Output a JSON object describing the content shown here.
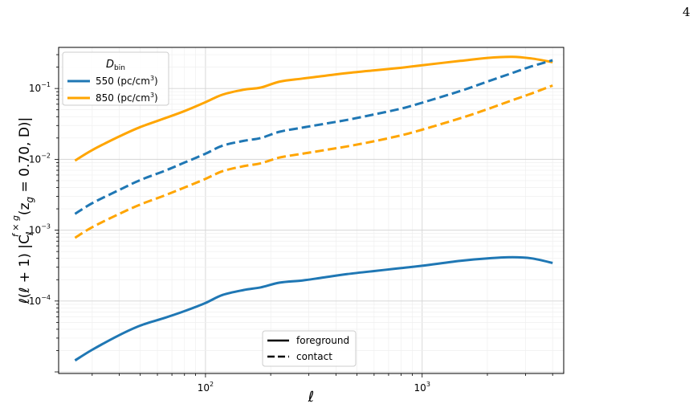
{
  "page": {
    "number": "4"
  },
  "chart_data": {
    "type": "line",
    "title": "",
    "xlabel": "ℓ",
    "ylabel": "ℓ(ℓ + 1) |C_ℓ^{f×g}(z_g = 0.70, D)|",
    "x_scale": "log",
    "y_scale": "log",
    "xlim": [
      21,
      4500
    ],
    "ylim": [
      9.5e-06,
      0.38
    ],
    "x_ticks": [
      {
        "value": 100,
        "base": "10",
        "exp": "2"
      },
      {
        "value": 1000,
        "base": "10",
        "exp": "3"
      }
    ],
    "y_ticks": [
      {
        "value": 0.1,
        "base": "10",
        "exp": "−1"
      },
      {
        "value": 0.01,
        "base": "10",
        "exp": "−2"
      },
      {
        "value": 0.001,
        "base": "10",
        "exp": "−3"
      },
      {
        "value": 0.0001,
        "base": "10",
        "exp": "−4"
      }
    ],
    "grid": true,
    "colors": {
      "D550": "#1f77b4",
      "D850": "#ffa500"
    },
    "legend_dbin": {
      "title_main": "D",
      "title_sub": "bin",
      "position": "top-left",
      "entries": [
        {
          "pre": "550 (pc/cm",
          "sup": "3",
          "post": ")",
          "color": "#1f77b4"
        },
        {
          "pre": "850 (pc/cm",
          "sup": "3",
          "post": ")",
          "color": "#ffa500"
        }
      ]
    },
    "legend_type": {
      "position": "lower-center",
      "entries": [
        {
          "label": "foreground",
          "style": "solid"
        },
        {
          "label": "contact",
          "style": "dashed"
        }
      ]
    },
    "series": [
      {
        "name": "850 (pc/cm3) foreground",
        "color": "#ffa500",
        "dash": "solid",
        "x": [
          25,
          30,
          40,
          50,
          65,
          80,
          100,
          120,
          150,
          180,
          220,
          280,
          350,
          450,
          600,
          800,
          1000,
          1500,
          2000,
          2600,
          3200,
          4000
        ],
        "y": [
          0.0096,
          0.0135,
          0.021,
          0.0285,
          0.038,
          0.048,
          0.064,
          0.082,
          0.096,
          0.103,
          0.125,
          0.138,
          0.15,
          0.165,
          0.18,
          0.196,
          0.213,
          0.245,
          0.27,
          0.28,
          0.265,
          0.235
        ]
      },
      {
        "name": "550 (pc/cm3) contact",
        "color": "#1f77b4",
        "dash": "dashed",
        "x": [
          25,
          30,
          40,
          50,
          65,
          80,
          100,
          120,
          150,
          180,
          220,
          280,
          350,
          450,
          600,
          800,
          1000,
          1500,
          2000,
          2600,
          3200,
          4000
        ],
        "y": [
          0.0017,
          0.0024,
          0.0037,
          0.0051,
          0.0069,
          0.009,
          0.012,
          0.0156,
          0.0182,
          0.02,
          0.0245,
          0.028,
          0.0315,
          0.036,
          0.043,
          0.052,
          0.063,
          0.092,
          0.125,
          0.165,
          0.205,
          0.25
        ]
      },
      {
        "name": "850 (pc/cm3) contact",
        "color": "#ffa500",
        "dash": "dashed",
        "x": [
          25,
          30,
          40,
          50,
          65,
          80,
          100,
          120,
          150,
          180,
          220,
          280,
          350,
          450,
          600,
          800,
          1000,
          1500,
          2000,
          2600,
          3200,
          4000
        ],
        "y": [
          0.00078,
          0.0011,
          0.0017,
          0.0023,
          0.0031,
          0.004,
          0.0053,
          0.0068,
          0.008,
          0.0088,
          0.0106,
          0.012,
          0.0134,
          0.0152,
          0.018,
          0.0218,
          0.0262,
          0.038,
          0.051,
          0.068,
          0.085,
          0.11
        ]
      },
      {
        "name": "550 (pc/cm3) foreground",
        "color": "#1f77b4",
        "dash": "solid",
        "x": [
          25,
          30,
          40,
          50,
          65,
          80,
          100,
          120,
          150,
          180,
          220,
          280,
          350,
          450,
          600,
          800,
          1000,
          1500,
          2000,
          2600,
          3200,
          4000
        ],
        "y": [
          1.45e-05,
          2.05e-05,
          3.3e-05,
          4.5e-05,
          5.8e-05,
          7.2e-05,
          9.4e-05,
          0.000122,
          0.000143,
          0.000156,
          0.000182,
          0.000195,
          0.000215,
          0.00024,
          0.000265,
          0.000292,
          0.000315,
          0.00037,
          0.0004,
          0.000415,
          0.0004,
          0.000345
        ]
      }
    ]
  }
}
